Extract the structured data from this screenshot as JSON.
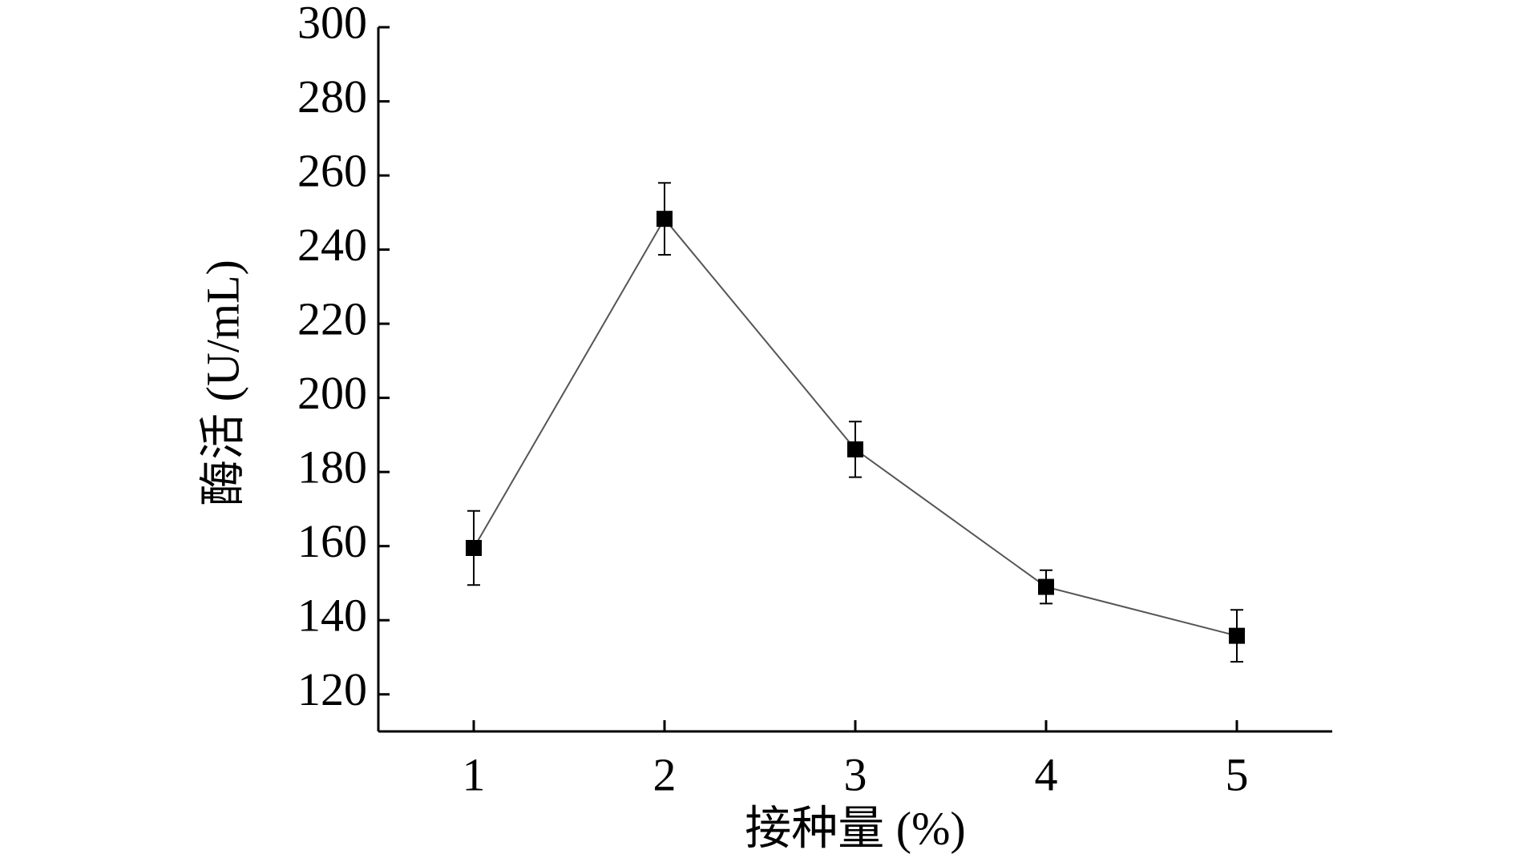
{
  "chart_data": {
    "type": "line",
    "x_label": "接种量 (%)",
    "y_label": "酶活 (U/mL)",
    "x": [
      1,
      2,
      3,
      4,
      5
    ],
    "values": [
      159.5,
      248.3,
      186.1,
      149,
      135.8
    ],
    "errors": [
      10,
      9.7,
      7.5,
      4.5,
      7
    ],
    "color": "#000000",
    "line_color": "#555555",
    "xlim": [
      0.5,
      5.5
    ],
    "xticks": [
      1,
      2,
      3,
      4,
      5
    ],
    "ylim": [
      110,
      300
    ],
    "yticks": [
      120,
      140,
      160,
      180,
      200,
      220,
      240,
      260,
      280,
      300
    ],
    "grid": false
  }
}
